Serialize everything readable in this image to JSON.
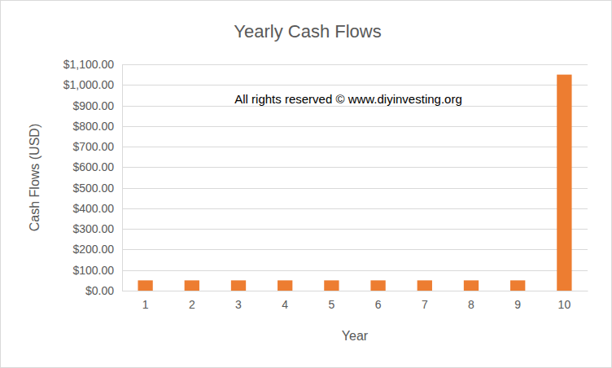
{
  "chart_data": {
    "type": "bar",
    "title": "Yearly Cash Flows",
    "x_label": "Year",
    "y_label": "Cash Flows (USD)",
    "annotations": [
      "All rights reserved © www.diyinvesting.org"
    ],
    "categories": [
      "1",
      "2",
      "3",
      "4",
      "5",
      "6",
      "7",
      "8",
      "9",
      "10"
    ],
    "values": [
      50,
      50,
      50,
      50,
      50,
      50,
      50,
      50,
      50,
      1050
    ],
    "color": "#ed7d31",
    "ylim": [
      0,
      1100
    ],
    "yticks": [
      {
        "value": 0,
        "label": "$0.00"
      },
      {
        "value": 100,
        "label": "$100.00"
      },
      {
        "value": 200,
        "label": "$200.00"
      },
      {
        "value": 300,
        "label": "$300.00"
      },
      {
        "value": 400,
        "label": "$400.00"
      },
      {
        "value": 500,
        "label": "$500.00"
      },
      {
        "value": 600,
        "label": "$600.00"
      },
      {
        "value": 700,
        "label": "$700.00"
      },
      {
        "value": 800,
        "label": "$800.00"
      },
      {
        "value": 900,
        "label": "$900.00"
      },
      {
        "value": 1000,
        "label": "$1,000.00"
      },
      {
        "value": 1100,
        "label": "$1,100.00"
      }
    ],
    "grid": true
  }
}
